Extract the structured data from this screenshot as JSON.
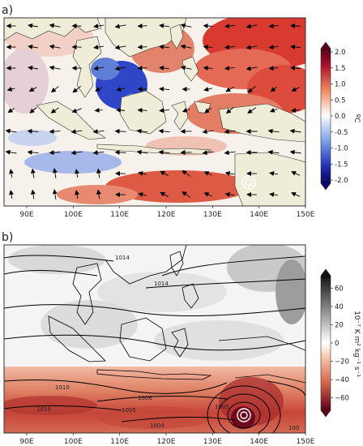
{
  "panels": [
    {
      "label": "a)",
      "x_ticks": [
        "90E",
        "100E",
        "110E",
        "120E",
        "130E",
        "140E",
        "150E"
      ],
      "colorbar": {
        "ticks": [
          "2.0",
          "1.5",
          "1.0",
          "0.5",
          "0.0",
          "-0.5",
          "-1.0",
          "-1.5",
          "-2.0"
        ],
        "unit": "ºC",
        "range": [
          -2.0,
          2.0
        ],
        "colormap": "blue-white-red"
      },
      "overlay": "wind vectors"
    },
    {
      "label": "b)",
      "x_ticks": [
        "90E",
        "100E",
        "110E",
        "120E",
        "130E",
        "140E",
        "150E"
      ],
      "colorbar": {
        "ticks": [
          "60",
          "40",
          "20",
          "0",
          "−20",
          "−40",
          "−60"
        ],
        "unit": "10⁻⁷ K m² kg⁻¹ s⁻¹",
        "range": [
          -70,
          70
        ],
        "colormap": "red-white-grey"
      },
      "contour_labels": [
        "1014",
        "1014",
        "1010",
        "1010",
        "1006",
        "1005",
        "1005",
        "1004",
        "100"
      ],
      "overlay": "sea level pressure contours"
    }
  ],
  "colors": {
    "land": "#efecd8",
    "warm": "#d9342b",
    "cool": "#2b3fc4",
    "contour": "#000000"
  }
}
